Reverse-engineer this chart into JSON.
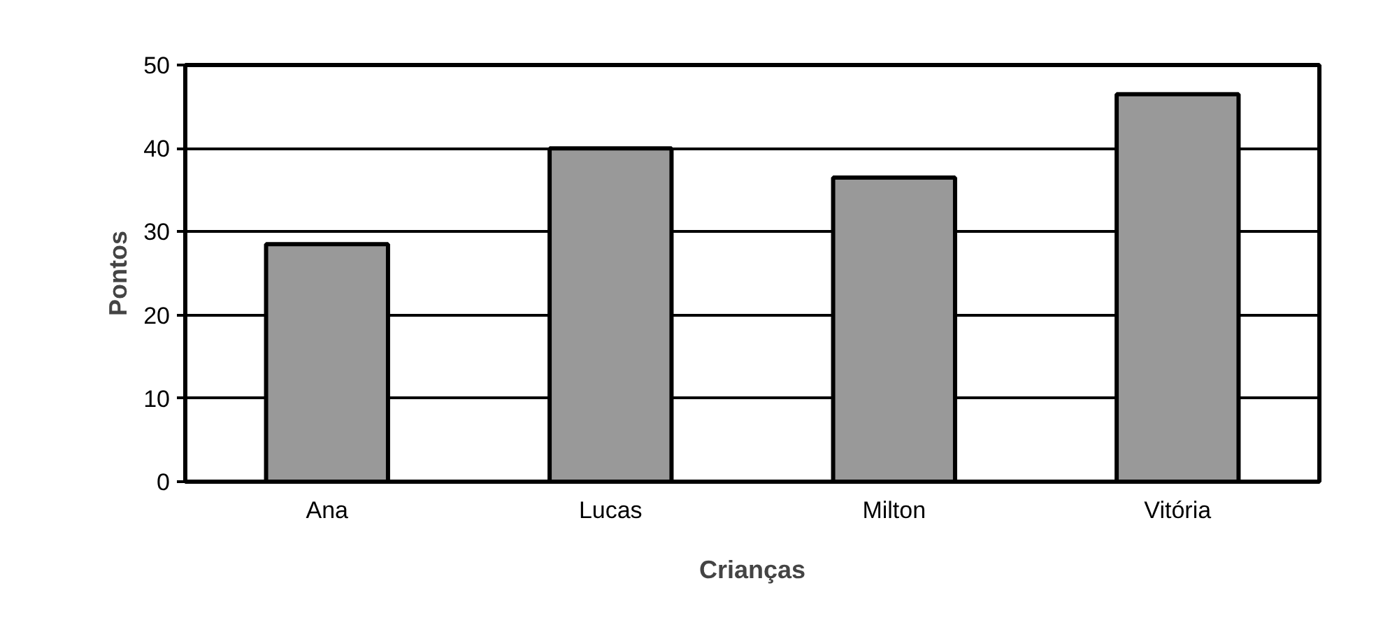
{
  "chart_data": {
    "type": "bar",
    "xlabel": "Crianças",
    "ylabel": "Pontos",
    "categories": [
      "Ana",
      "Lucas",
      "Milton",
      "Vitória"
    ],
    "values": [
      28.5,
      40,
      36.5,
      46.5
    ],
    "color": "#999999",
    "ylim": [
      0,
      50
    ],
    "yticks": [
      0,
      10,
      20,
      30,
      40,
      50
    ],
    "grid": "y"
  }
}
